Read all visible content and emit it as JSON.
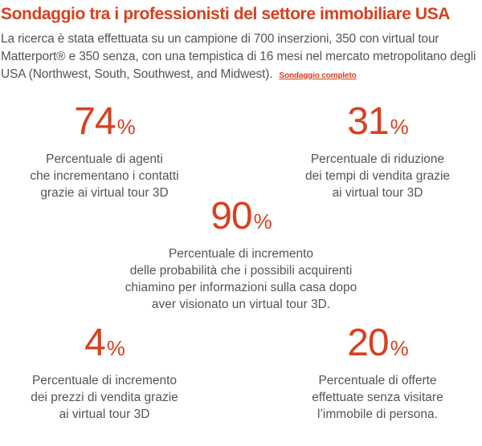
{
  "title": "Sondaggio tra i professionisti del settore immobiliare USA",
  "intro": {
    "text": "La ricerca è stata effettuata su un campione di 700 inserzioni, 350 con virtual tour Matterport® e 350 senza, con una tempistica di 16 mesi nel mercato metropolitano degli USA (Northwest, South, Southwest, and Midwest).",
    "link_label": "Sondaggio completo"
  },
  "stats": [
    {
      "value": "74",
      "unit": "%",
      "lines": [
        "Percentuale di agenti",
        "che incrementano i contatti",
        "grazie ai virtual tour 3D"
      ]
    },
    {
      "value": "31",
      "unit": "%",
      "lines": [
        "Percentuale di riduzione",
        "dei tempi di vendita grazie",
        "ai virtual tour 3D"
      ]
    },
    {
      "value": "90",
      "unit": "%",
      "lines": [
        "Percentuale di incremento",
        "delle probabilità che i possibili acquirenti",
        "chiamino per informazioni sulla casa dopo",
        "aver visionato un virtual tour 3D."
      ]
    },
    {
      "value": "4",
      "unit": "%",
      "lines": [
        "Percentuale di incremento",
        "dei prezzi di vendita grazie",
        "ai virtual tour 3D"
      ]
    },
    {
      "value": "20",
      "unit": "%",
      "lines": [
        "Percentuale di offerte",
        "effettuate senza visitare",
        "l’immobile di persona."
      ]
    }
  ],
  "colors": {
    "accent": "#d9401f",
    "text": "#555555",
    "background": "#ffffff"
  }
}
